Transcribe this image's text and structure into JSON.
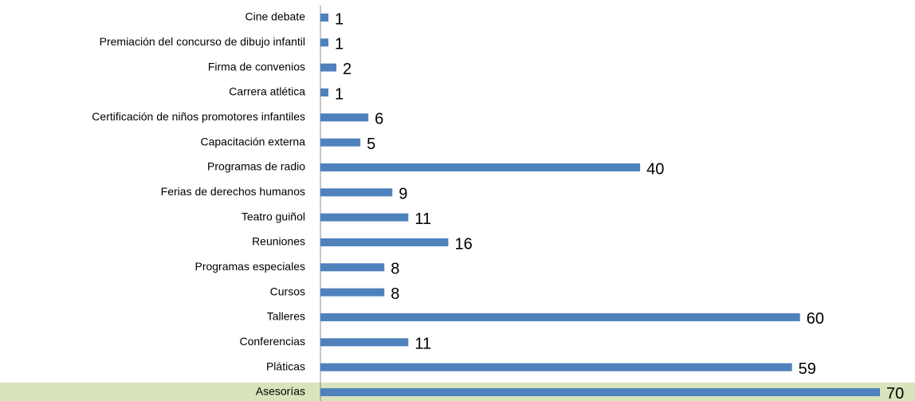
{
  "chart_data": {
    "type": "barh",
    "categories": [
      "Cine debate",
      "Premiación del concurso de dibujo infantil",
      "Firma de convenios",
      "Carrera atlética",
      "Certificación de niños promotores infantiles",
      "Capacitación externa",
      "Programas de radio",
      "Ferias de derechos humanos",
      "Teatro guiñol",
      "Reuniones",
      "Programas especiales",
      "Cursos",
      "Talleres",
      "Conferencias",
      "Pláticas",
      "Asesorías"
    ],
    "values": [
      1,
      1,
      2,
      1,
      6,
      5,
      40,
      9,
      11,
      16,
      8,
      8,
      60,
      11,
      59,
      70
    ],
    "color": "#4f81bd",
    "xlim": [
      0,
      70
    ]
  }
}
